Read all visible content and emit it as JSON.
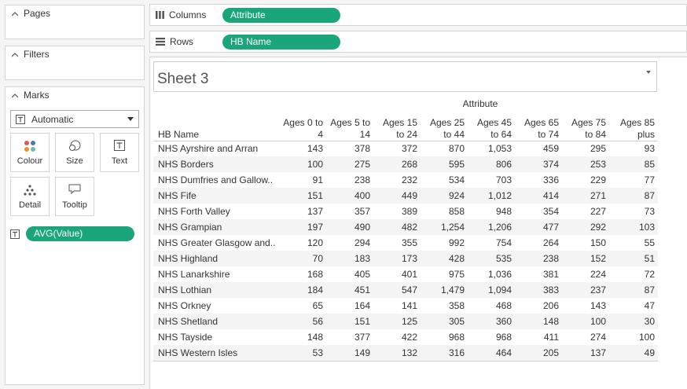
{
  "left_panel": {
    "pages_label": "Pages",
    "filters_label": "Filters",
    "marks_label": "Marks",
    "mark_type": "Automatic",
    "buttons": {
      "colour": "Colour",
      "size": "Size",
      "text": "Text",
      "detail": "Detail",
      "tooltip": "Tooltip"
    },
    "text_pill": "AVG(Value)"
  },
  "shelves": {
    "columns_label": "Columns",
    "columns_pill": "Attribute",
    "rows_label": "Rows",
    "rows_pill": "HB Name"
  },
  "sheet": {
    "title": "Sheet 3",
    "column_group_header": "Attribute",
    "row_header": "HB Name",
    "columns": [
      [
        "Ages 0 to",
        "4"
      ],
      [
        "Ages 5 to",
        "14"
      ],
      [
        "Ages 15",
        "to 24"
      ],
      [
        "Ages 25",
        "to 44"
      ],
      [
        "Ages 45",
        "to 64"
      ],
      [
        "Ages 65",
        "to 74"
      ],
      [
        "Ages 75",
        "to 84"
      ],
      [
        "Ages 85",
        "plus"
      ]
    ],
    "rows": [
      {
        "name": "NHS Ayrshire and Arran",
        "values": [
          "143",
          "378",
          "372",
          "870",
          "1,053",
          "459",
          "295",
          "93"
        ]
      },
      {
        "name": "NHS Borders",
        "values": [
          "100",
          "275",
          "268",
          "595",
          "806",
          "374",
          "253",
          "85"
        ]
      },
      {
        "name": "NHS Dumfries and Gallow..",
        "values": [
          "91",
          "238",
          "232",
          "534",
          "703",
          "336",
          "229",
          "77"
        ]
      },
      {
        "name": "NHS Fife",
        "values": [
          "151",
          "400",
          "449",
          "924",
          "1,012",
          "414",
          "271",
          "87"
        ]
      },
      {
        "name": "NHS Forth Valley",
        "values": [
          "137",
          "357",
          "389",
          "858",
          "948",
          "354",
          "227",
          "73"
        ]
      },
      {
        "name": "NHS Grampian",
        "values": [
          "197",
          "490",
          "482",
          "1,254",
          "1,206",
          "477",
          "292",
          "103"
        ]
      },
      {
        "name": "NHS Greater Glasgow and..",
        "values": [
          "120",
          "294",
          "355",
          "992",
          "754",
          "264",
          "150",
          "55"
        ]
      },
      {
        "name": "NHS Highland",
        "values": [
          "70",
          "183",
          "173",
          "428",
          "535",
          "238",
          "152",
          "51"
        ]
      },
      {
        "name": "NHS Lanarkshire",
        "values": [
          "168",
          "405",
          "401",
          "975",
          "1,036",
          "381",
          "224",
          "72"
        ]
      },
      {
        "name": "NHS Lothian",
        "values": [
          "184",
          "451",
          "547",
          "1,479",
          "1,094",
          "383",
          "237",
          "87"
        ]
      },
      {
        "name": "NHS Orkney",
        "values": [
          "65",
          "164",
          "141",
          "358",
          "468",
          "206",
          "143",
          "47"
        ]
      },
      {
        "name": "NHS Shetland",
        "values": [
          "56",
          "151",
          "125",
          "305",
          "360",
          "148",
          "100",
          "30"
        ]
      },
      {
        "name": "NHS Tayside",
        "values": [
          "148",
          "377",
          "422",
          "968",
          "968",
          "411",
          "274",
          "100"
        ]
      },
      {
        "name": "NHS Western Isles",
        "values": [
          "53",
          "149",
          "132",
          "316",
          "464",
          "205",
          "137",
          "49"
        ]
      }
    ]
  },
  "colors": {
    "pill": "#1aa57a",
    "row_stripe": "#f4f4f4"
  }
}
